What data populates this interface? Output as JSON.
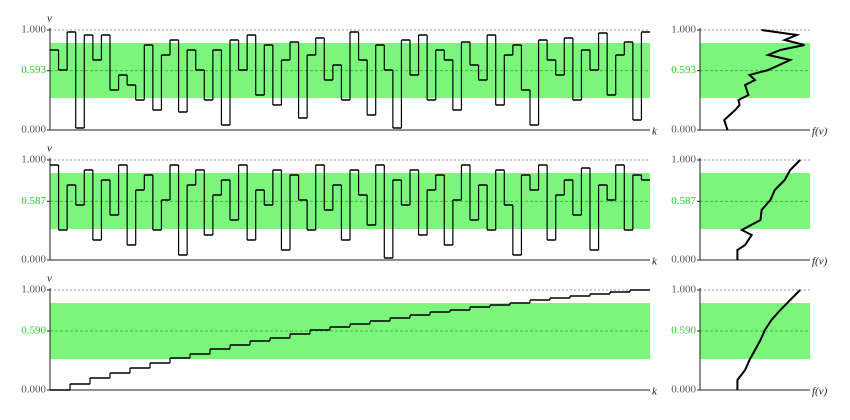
{
  "chart_data": [
    {
      "type": "step",
      "y_label": "v",
      "x_label": "k",
      "color": "#000000",
      "band_color": "#7cf57c",
      "band": [
        0.32,
        0.87
      ],
      "mean": 0.593,
      "ylim": [
        0,
        1
      ],
      "yticks": [
        {
          "value": 0,
          "label": "0.000"
        },
        {
          "value": 0.593,
          "label": "0.593"
        },
        {
          "value": 1,
          "label": "1.000"
        }
      ],
      "xlim": [
        0,
        70
      ],
      "values": [
        0.8,
        0.6,
        0.98,
        0.02,
        0.95,
        0.7,
        0.95,
        0.4,
        0.55,
        0.45,
        0.3,
        0.85,
        0.2,
        0.75,
        0.9,
        0.18,
        0.8,
        0.6,
        0.3,
        0.8,
        0.05,
        0.9,
        0.6,
        0.95,
        0.35,
        0.85,
        0.25,
        0.7,
        0.88,
        0.12,
        0.75,
        0.92,
        0.5,
        0.65,
        0.3,
        0.98,
        0.7,
        0.15,
        0.85,
        0.6,
        0.02,
        0.9,
        0.55,
        0.95,
        0.3,
        0.8,
        0.7,
        0.2,
        0.88,
        0.65,
        0.5,
        0.95,
        0.25,
        0.75,
        0.85,
        0.4,
        0.05,
        0.9,
        0.7,
        0.55,
        0.92,
        0.3,
        0.8,
        0.6,
        0.97,
        0.35,
        0.75,
        0.88,
        0.1,
        0.98
      ]
    },
    {
      "type": "density",
      "x_label": "f(v)",
      "color": "#000000",
      "band_color": "#7cf57c",
      "band": [
        0.32,
        0.87
      ],
      "mean": 0.593,
      "flim": [
        0,
        1
      ],
      "ylim": [
        0,
        1
      ],
      "yticks": [
        {
          "value": 0,
          "label": "0.000"
        },
        {
          "value": 0.593,
          "label": "0.593"
        },
        {
          "value": 1,
          "label": "1.000"
        }
      ],
      "v": [
        0,
        0.1,
        0.2,
        0.25,
        0.3,
        0.35,
        0.45,
        0.5,
        0.55,
        0.6,
        0.7,
        0.75,
        0.8,
        0.85,
        0.9,
        0.95,
        1.0
      ],
      "f": [
        0.25,
        0.22,
        0.32,
        0.36,
        0.35,
        0.44,
        0.41,
        0.5,
        0.45,
        0.62,
        0.82,
        0.62,
        0.73,
        0.95,
        0.77,
        0.88,
        0.56
      ]
    },
    {
      "type": "step",
      "y_label": "v",
      "x_label": "k",
      "color": "#000000",
      "band_color": "#7cf57c",
      "band": [
        0.31,
        0.87
      ],
      "mean": 0.587,
      "ylim": [
        0,
        1
      ],
      "yticks": [
        {
          "value": 0,
          "label": "0.000"
        },
        {
          "value": 0.587,
          "label": "0.587"
        },
        {
          "value": 1,
          "label": "1.000"
        }
      ],
      "xlim": [
        0,
        70
      ],
      "values": [
        0.95,
        0.3,
        0.75,
        0.55,
        0.9,
        0.2,
        0.8,
        0.45,
        0.95,
        0.15,
        0.7,
        0.85,
        0.3,
        0.6,
        0.95,
        0.05,
        0.75,
        0.9,
        0.25,
        0.65,
        0.8,
        0.4,
        0.95,
        0.2,
        0.7,
        0.55,
        0.9,
        0.1,
        0.85,
        0.6,
        0.3,
        0.95,
        0.5,
        0.75,
        0.2,
        0.9,
        0.65,
        0.35,
        0.95,
        0.02,
        0.8,
        0.55,
        0.9,
        0.25,
        0.7,
        0.85,
        0.15,
        0.6,
        0.95,
        0.4,
        0.75,
        0.3,
        0.9,
        0.55,
        0.05,
        0.85,
        0.7,
        0.95,
        0.2,
        0.65,
        0.8,
        0.45,
        0.92,
        0.1,
        0.75,
        0.6,
        0.95,
        0.3,
        0.85,
        0.8
      ]
    },
    {
      "type": "density",
      "x_label": "f(v)",
      "color": "#000000",
      "band_color": "#7cf57c",
      "band": [
        0.31,
        0.87
      ],
      "mean": 0.587,
      "flim": [
        0,
        1
      ],
      "ylim": [
        0,
        1
      ],
      "yticks": [
        {
          "value": 0,
          "label": "0.000"
        },
        {
          "value": 0.587,
          "label": "0.587"
        },
        {
          "value": 1,
          "label": "1.000"
        }
      ],
      "v": [
        0,
        0.1,
        0.15,
        0.25,
        0.3,
        0.4,
        0.5,
        0.6,
        0.7,
        0.8,
        0.9,
        1.0
      ],
      "f": [
        0.34,
        0.34,
        0.41,
        0.47,
        0.38,
        0.55,
        0.56,
        0.64,
        0.68,
        0.77,
        0.82,
        0.91
      ]
    },
    {
      "type": "step",
      "y_label": "v",
      "x_label": "k",
      "color": "#000000",
      "band_color": "#7cf57c",
      "band": [
        0.31,
        0.87
      ],
      "mean": 0.59,
      "ylim": [
        0,
        1
      ],
      "yticks": [
        {
          "value": 0,
          "label": "0.000"
        },
        {
          "value": 0.59,
          "label": "0.590"
        },
        {
          "value": 1,
          "label": "1.000"
        }
      ],
      "xlim": [
        0,
        30
      ],
      "values": [
        0,
        0.06,
        0.12,
        0.17,
        0.22,
        0.27,
        0.32,
        0.36,
        0.41,
        0.45,
        0.49,
        0.52,
        0.56,
        0.6,
        0.63,
        0.66,
        0.69,
        0.72,
        0.75,
        0.78,
        0.8,
        0.83,
        0.85,
        0.87,
        0.9,
        0.92,
        0.94,
        0.96,
        0.98,
        1.0
      ]
    },
    {
      "type": "density",
      "x_label": "f(v)",
      "color": "#000000",
      "band_color": "#7cf57c",
      "band": [
        0.31,
        0.87
      ],
      "mean": 0.59,
      "flim": [
        0,
        1
      ],
      "ylim": [
        0,
        1
      ],
      "yticks": [
        {
          "value": 0,
          "label": "0.000"
        },
        {
          "value": 0.59,
          "label": "0.590"
        },
        {
          "value": 1,
          "label": "1.000"
        }
      ],
      "v": [
        0,
        0.1,
        0.2,
        0.3,
        0.4,
        0.5,
        0.6,
        0.7,
        0.8,
        0.9,
        1.0
      ],
      "f": [
        0.34,
        0.34,
        0.41,
        0.45,
        0.5,
        0.55,
        0.59,
        0.65,
        0.73,
        0.82,
        0.91
      ]
    }
  ]
}
